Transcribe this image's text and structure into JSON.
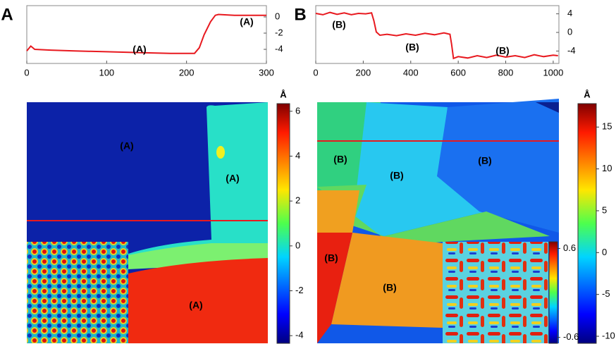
{
  "chart_data": [
    {
      "type": "line",
      "label": "A",
      "x": [
        0,
        5,
        10,
        30,
        60,
        100,
        140,
        180,
        210,
        216,
        222,
        230,
        236,
        240,
        260,
        300
      ],
      "values": [
        -4.2,
        -3.6,
        -4.0,
        -4.1,
        -4.2,
        -4.3,
        -4.4,
        -4.5,
        -4.5,
        -3.8,
        -2.2,
        -0.6,
        0.2,
        0.3,
        0.2,
        0.2
      ],
      "color": "#e8191f",
      "xlim": [
        0,
        300
      ],
      "xticks": [
        0,
        100,
        200,
        300
      ],
      "ylim": [
        -5.74,
        1.39
      ],
      "yticks": [
        0,
        -2,
        -4
      ],
      "annotations": [
        "(A)",
        "(A)"
      ]
    },
    {
      "type": "line",
      "label": "B",
      "x": [
        0,
        30,
        60,
        90,
        120,
        150,
        180,
        210,
        235,
        245,
        255,
        270,
        300,
        340,
        380,
        420,
        460,
        500,
        540,
        565,
        572,
        580,
        600,
        640,
        680,
        720,
        760,
        800,
        840,
        880,
        920,
        960,
        1000,
        1020
      ],
      "values": [
        4.1,
        3.8,
        4.3,
        3.9,
        4.2,
        3.8,
        4.1,
        4.0,
        4.2,
        2.5,
        0.1,
        -0.6,
        -0.4,
        -0.7,
        -0.3,
        -0.6,
        -0.2,
        -0.5,
        -0.1,
        -0.4,
        -2.5,
        -5.6,
        -5.2,
        -5.5,
        -5.0,
        -5.4,
        -4.9,
        -5.3,
        -5.0,
        -5.4,
        -4.8,
        -5.2,
        -4.9,
        -5.0
      ],
      "color": "#e8191f",
      "xlim": [
        0,
        1024
      ],
      "xticks": [
        0,
        200,
        400,
        600,
        800,
        1000
      ],
      "ylim": [
        -6.67,
        5.76
      ],
      "yticks": [
        4,
        0,
        -4
      ],
      "annotations": [
        "(B)",
        "(B)",
        "(B)"
      ]
    },
    {
      "type": "image",
      "annotations": [
        "(A)",
        "(A)",
        "(A)"
      ],
      "colorbar": {
        "unit": "Å",
        "ylim": [
          -4.34,
          6.34
        ],
        "yticks": [
          6,
          4,
          2,
          0,
          -2,
          -4
        ]
      }
    },
    {
      "type": "image",
      "annotations": [
        "(B)",
        "(B)",
        "(B)",
        "(B)",
        "(B)"
      ],
      "colorbar": {
        "unit": "Å",
        "ylim": [
          -10.84,
          17.8
        ],
        "yticks": [
          15,
          10,
          5,
          0,
          -5,
          -10
        ]
      },
      "inset_colorbar": {
        "ylim": [
          -0.68,
          0.69
        ],
        "yticks": [
          0.6,
          -0.6
        ]
      }
    }
  ]
}
